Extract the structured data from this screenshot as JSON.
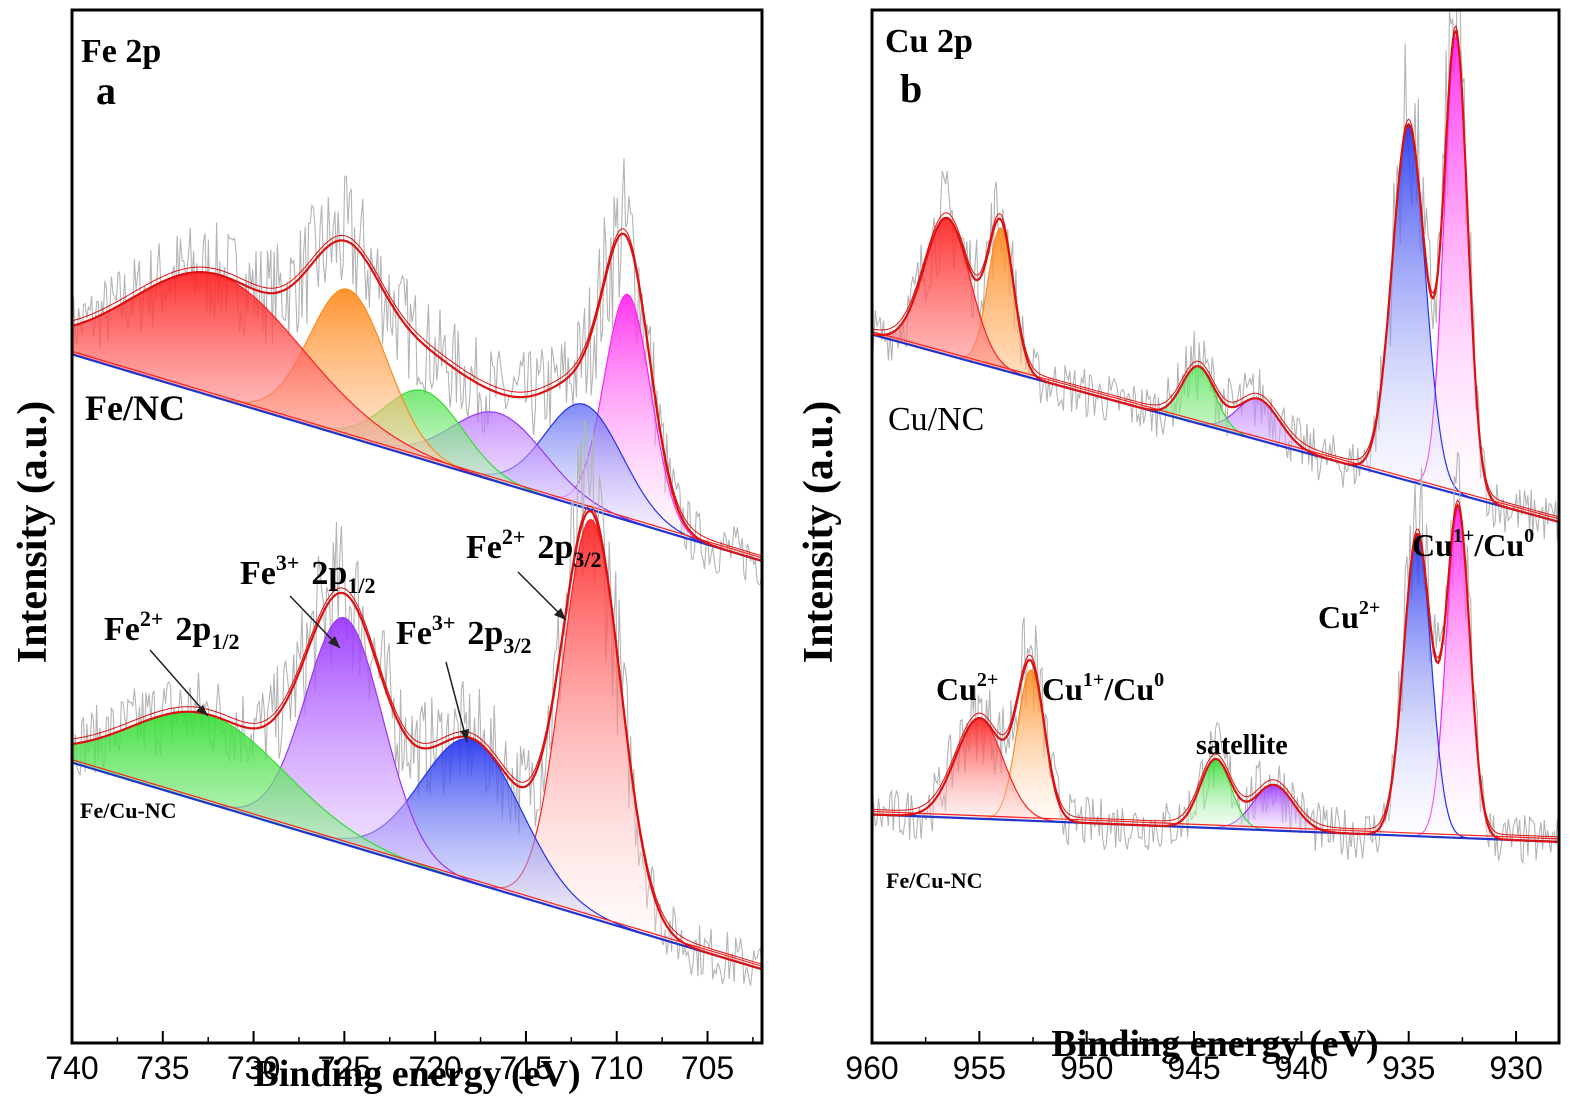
{
  "colors": {
    "red": "#ff2020",
    "orange": "#ff8a1e",
    "green": "#33dd33",
    "purple": "#9933ff",
    "blue": "#2233ee",
    "magenta": "#ff22ee",
    "envelope": "#dd1111",
    "raw": "#b4b4b4",
    "baseline": "#2233cc"
  },
  "chart_data": [
    {
      "id": "a",
      "type": "line",
      "panel_letter": "a",
      "element": "Fe 2p",
      "xlabel": "Binding energy (eV)",
      "ylabel": "Intensity (a.u.)",
      "xlim": [
        740,
        702
      ],
      "ylim": [
        -0.1,
        10.4
      ],
      "x_reversed": true,
      "xticks": [
        740,
        735,
        730,
        725,
        720,
        715,
        710,
        705
      ],
      "samples": [
        {
          "name": "Fe/NC",
          "baseline": [
            [
              740,
              6.9
            ],
            [
              702,
              4.8
            ]
          ],
          "peaks": [
            {
              "center": 709.4,
              "height": 2.3,
              "fwhm": 3.0,
              "color": "magenta"
            },
            {
              "center": 711.8,
              "height": 1.05,
              "fwhm": 5.0,
              "color": "blue"
            },
            {
              "center": 716.5,
              "height": 0.7,
              "fwhm": 6.0,
              "color": "purple"
            },
            {
              "center": 720.6,
              "height": 0.7,
              "fwhm": 5.0,
              "color": "green"
            },
            {
              "center": 724.8,
              "height": 1.5,
              "fwhm": 5.0,
              "color": "orange"
            },
            {
              "center": 732.0,
              "height": 1.25,
              "fwhm": 11.0,
              "color": "red"
            }
          ]
        },
        {
          "name": "Fe/Cu-NC",
          "baseline": [
            [
              740,
              2.75
            ],
            [
              702,
              0.65
            ]
          ],
          "peaks": [
            {
              "center": 711.4,
              "height": 4.05,
              "fwhm": 3.8,
              "color": "red"
            },
            {
              "center": 718.0,
              "height": 1.45,
              "fwhm": 6.5,
              "color": "blue"
            },
            {
              "center": 725.0,
              "height": 2.3,
              "fwhm": 5.0,
              "color": "purple"
            },
            {
              "center": 732.5,
              "height": 0.9,
              "fwhm": 10.0,
              "color": "green"
            }
          ],
          "annotations": [
            {
              "label": "Fe",
              "sup": "2+",
              "tail": "2p",
              "sub": "1/2",
              "arrow_to": [
                733.5,
                3.1
              ]
            },
            {
              "label": "Fe",
              "sup": "3+",
              "tail": "2p",
              "sub": "1/2",
              "arrow_to": [
                725.3,
                4.15
              ]
            },
            {
              "label": "Fe",
              "sup": "3+",
              "tail": "2p",
              "sub": "3/2",
              "arrow_to": [
                718.0,
                2.75
              ]
            },
            {
              "label": "Fe",
              "sup": "2+",
              "tail": "2p",
              "sub": "3/2",
              "arrow_to": [
                711.8,
                5.3
              ]
            }
          ]
        }
      ]
    },
    {
      "id": "b",
      "type": "line",
      "panel_letter": "b",
      "element": "Cu 2p",
      "xlabel": "Binding energy (eV)",
      "ylabel": "Intensity (a.u.)",
      "xlim": [
        960,
        928
      ],
      "ylim": [
        -0.9,
        10.4
      ],
      "x_reversed": true,
      "xticks": [
        960,
        955,
        950,
        945,
        940,
        935,
        930
      ],
      "samples": [
        {
          "name": "Cu/NC",
          "baseline": [
            [
              960,
              6.85
            ],
            [
              928,
              4.8
            ]
          ],
          "peaks": [
            {
              "center": 932.8,
              "height": 5.0,
              "fwhm": 1.3,
              "color": "magenta"
            },
            {
              "center": 935.0,
              "height": 3.9,
              "fwhm": 1.8,
              "color": "blue"
            },
            {
              "center": 942.0,
              "height": 0.45,
              "fwhm": 2.3,
              "color": "purple"
            },
            {
              "center": 944.8,
              "height": 0.62,
              "fwhm": 1.8,
              "color": "green"
            },
            {
              "center": 954.0,
              "height": 1.55,
              "fwhm": 1.4,
              "color": "orange"
            },
            {
              "center": 956.5,
              "height": 1.5,
              "fwhm": 2.5,
              "color": "red"
            }
          ]
        },
        {
          "name": "Fe/Cu-NC",
          "baseline": [
            [
              960,
              1.6
            ],
            [
              928,
              1.3
            ]
          ],
          "peaks": [
            {
              "center": 932.7,
              "height": 3.6,
              "fwhm": 1.3,
              "color": "magenta"
            },
            {
              "center": 934.6,
              "height": 3.3,
              "fwhm": 1.5,
              "color": "blue"
            },
            {
              "center": 941.3,
              "height": 0.5,
              "fwhm": 2.2,
              "color": "purple"
            },
            {
              "center": 944.0,
              "height": 0.75,
              "fwhm": 1.7,
              "color": "green"
            },
            {
              "center": 952.6,
              "height": 1.65,
              "fwhm": 1.5,
              "color": "orange"
            },
            {
              "center": 955.0,
              "height": 1.1,
              "fwhm": 2.6,
              "color": "red"
            }
          ]
        }
      ],
      "annotations": [
        {
          "label": "Cu",
          "sup": "1+",
          "tail": "/Cu",
          "sub0": "0"
        },
        {
          "label": "Cu",
          "sup": "2+"
        },
        {
          "label": "Cu",
          "sup": "2+"
        },
        {
          "label": "Cu",
          "sup": "1+",
          "tail": "/Cu",
          "sub0": "0"
        },
        {
          "label": "satellite"
        }
      ]
    }
  ]
}
